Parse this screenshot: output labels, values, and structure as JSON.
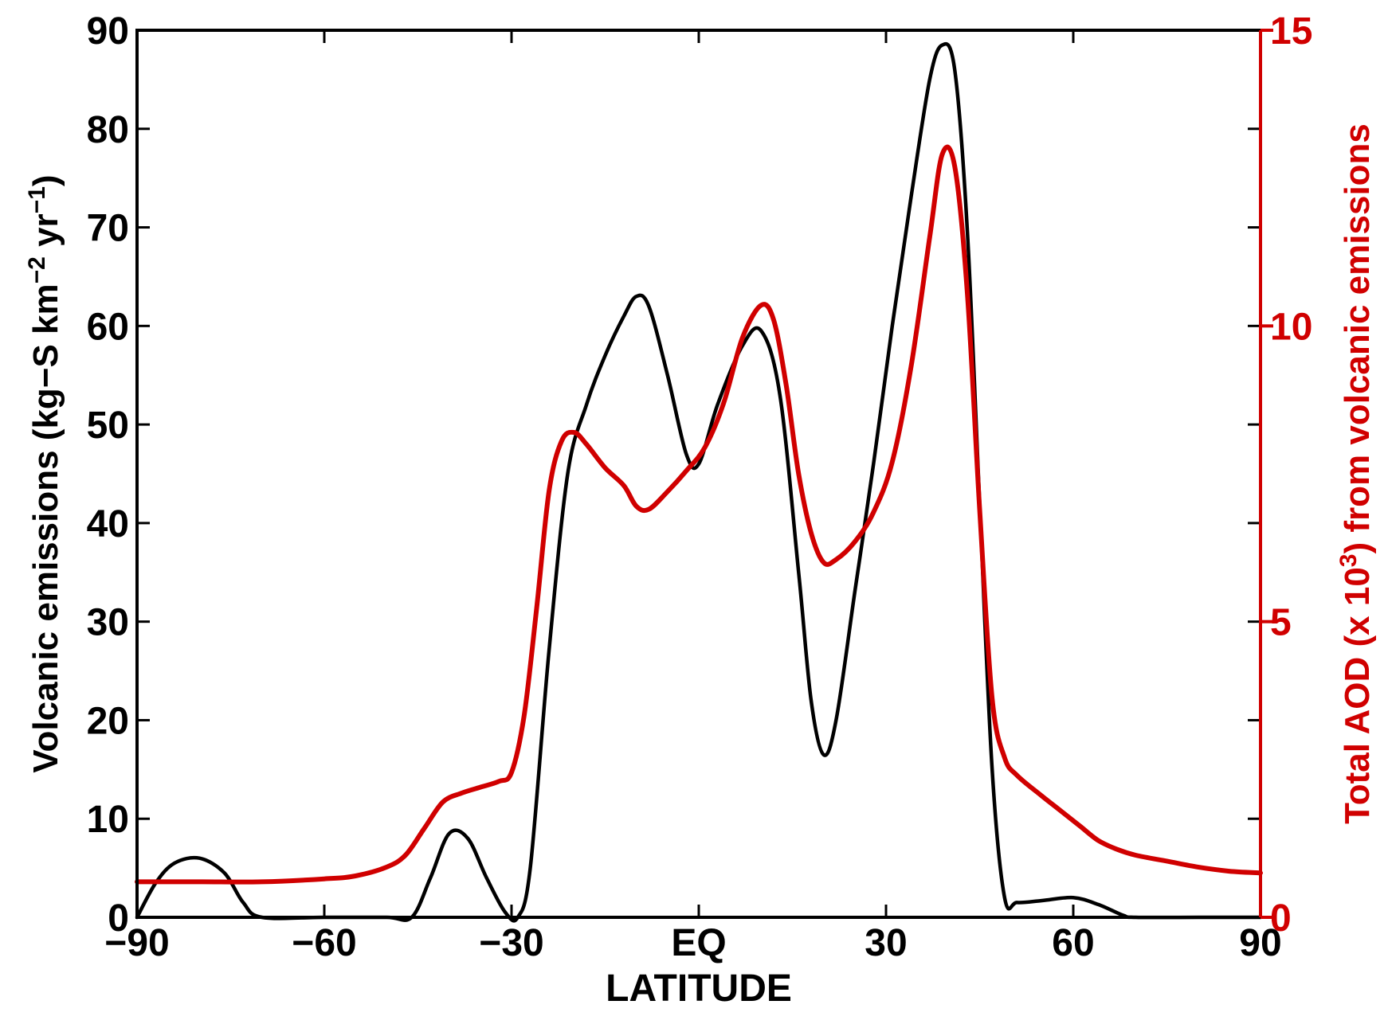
{
  "chart_data": {
    "type": "line",
    "title": "",
    "xlabel": "LATITUDE",
    "ylabel_left": {
      "prefix": "Volcanic emissions (kg−S km",
      "exp1": "−2",
      "middle": " yr",
      "exp2": "−1",
      "suffix": ")"
    },
    "ylabel_right": {
      "prefix": "Total AOD (x 10",
      "exp": "3",
      "suffix": ") from volcanic emissions",
      "color": "#d00000"
    },
    "xlim": [
      -90,
      90
    ],
    "ylim_left": [
      0,
      90
    ],
    "ylim_right": [
      0,
      15
    ],
    "x_ticks": [
      {
        "value": -90,
        "label": "−90"
      },
      {
        "value": -60,
        "label": "−60"
      },
      {
        "value": -30,
        "label": "−30"
      },
      {
        "value": 0,
        "label": "EQ"
      },
      {
        "value": 30,
        "label": "30"
      },
      {
        "value": 60,
        "label": "60"
      },
      {
        "value": 90,
        "label": "90"
      }
    ],
    "y_left_ticks": [
      {
        "value": 0,
        "label": "0"
      },
      {
        "value": 10,
        "label": "10"
      },
      {
        "value": 20,
        "label": "20"
      },
      {
        "value": 30,
        "label": "30"
      },
      {
        "value": 40,
        "label": "40"
      },
      {
        "value": 50,
        "label": "50"
      },
      {
        "value": 60,
        "label": "60"
      },
      {
        "value": 70,
        "label": "70"
      },
      {
        "value": 80,
        "label": "80"
      },
      {
        "value": 90,
        "label": "90"
      }
    ],
    "y_right_ticks": [
      {
        "value": 0,
        "label": "0"
      },
      {
        "value": 5,
        "label": "5"
      },
      {
        "value": 10,
        "label": "10"
      },
      {
        "value": 15,
        "label": "15"
      }
    ],
    "grid": false,
    "series": [
      {
        "axis": "left",
        "color": "#000000",
        "points": [
          [
            -90,
            0
          ],
          [
            -87,
            3.5
          ],
          [
            -84,
            5.5
          ],
          [
            -80,
            6
          ],
          [
            -76,
            4.5
          ],
          [
            -73,
            1.5
          ],
          [
            -70,
            0
          ],
          [
            -60,
            0
          ],
          [
            -50,
            0
          ],
          [
            -46,
            0
          ],
          [
            -43,
            4
          ],
          [
            -40,
            8.5
          ],
          [
            -37,
            8
          ],
          [
            -34,
            4
          ],
          [
            -31,
            0.5
          ],
          [
            -29,
            0
          ],
          [
            -27,
            5
          ],
          [
            -24,
            27
          ],
          [
            -21,
            45
          ],
          [
            -18,
            52
          ],
          [
            -15,
            57
          ],
          [
            -12,
            61
          ],
          [
            -10,
            63
          ],
          [
            -8,
            62
          ],
          [
            -5,
            55
          ],
          [
            -2,
            47
          ],
          [
            0,
            46
          ],
          [
            3,
            52
          ],
          [
            7,
            58
          ],
          [
            10,
            59.5
          ],
          [
            13,
            53
          ],
          [
            16,
            35
          ],
          [
            18,
            22
          ],
          [
            20,
            16.5
          ],
          [
            22,
            20
          ],
          [
            25,
            33
          ],
          [
            28,
            46
          ],
          [
            31,
            60
          ],
          [
            34,
            73
          ],
          [
            37,
            85
          ],
          [
            39,
            88.5
          ],
          [
            41,
            86
          ],
          [
            43,
            70
          ],
          [
            45,
            42
          ],
          [
            47,
            15
          ],
          [
            49,
            2
          ],
          [
            51,
            1.5
          ],
          [
            55,
            1.7
          ],
          [
            60,
            2
          ],
          [
            64,
            1.3
          ],
          [
            68,
            0.2
          ],
          [
            70,
            0
          ],
          [
            80,
            0
          ],
          [
            90,
            0
          ]
        ]
      },
      {
        "axis": "right",
        "color": "#d00000",
        "points": [
          [
            -90,
            0.6
          ],
          [
            -80,
            0.6
          ],
          [
            -70,
            0.6
          ],
          [
            -60,
            0.65
          ],
          [
            -55,
            0.7
          ],
          [
            -50,
            0.85
          ],
          [
            -47,
            1.05
          ],
          [
            -44,
            1.5
          ],
          [
            -41,
            1.95
          ],
          [
            -38,
            2.1
          ],
          [
            -35,
            2.2
          ],
          [
            -32,
            2.3
          ],
          [
            -30,
            2.45
          ],
          [
            -28,
            3.4
          ],
          [
            -26,
            5.2
          ],
          [
            -24,
            7.2
          ],
          [
            -22,
            8.05
          ],
          [
            -20,
            8.2
          ],
          [
            -18,
            8.0
          ],
          [
            -15,
            7.6
          ],
          [
            -12,
            7.3
          ],
          [
            -10,
            6.95
          ],
          [
            -8,
            6.9
          ],
          [
            -5,
            7.2
          ],
          [
            -2,
            7.55
          ],
          [
            1,
            7.95
          ],
          [
            4,
            8.7
          ],
          [
            7,
            9.8
          ],
          [
            10,
            10.35
          ],
          [
            12,
            10.1
          ],
          [
            14,
            9.0
          ],
          [
            16,
            7.5
          ],
          [
            18,
            6.5
          ],
          [
            20,
            6.0
          ],
          [
            22,
            6.05
          ],
          [
            25,
            6.35
          ],
          [
            28,
            6.85
          ],
          [
            31,
            7.7
          ],
          [
            34,
            9.3
          ],
          [
            37,
            11.5
          ],
          [
            39,
            12.9
          ],
          [
            41,
            12.7
          ],
          [
            43,
            10.6
          ],
          [
            45,
            6.9
          ],
          [
            47,
            3.7
          ],
          [
            49,
            2.7
          ],
          [
            51,
            2.4
          ],
          [
            55,
            2.05
          ],
          [
            58,
            1.8
          ],
          [
            61,
            1.55
          ],
          [
            64,
            1.3
          ],
          [
            67,
            1.15
          ],
          [
            70,
            1.05
          ],
          [
            75,
            0.95
          ],
          [
            80,
            0.85
          ],
          [
            85,
            0.78
          ],
          [
            90,
            0.75
          ]
        ]
      }
    ]
  }
}
